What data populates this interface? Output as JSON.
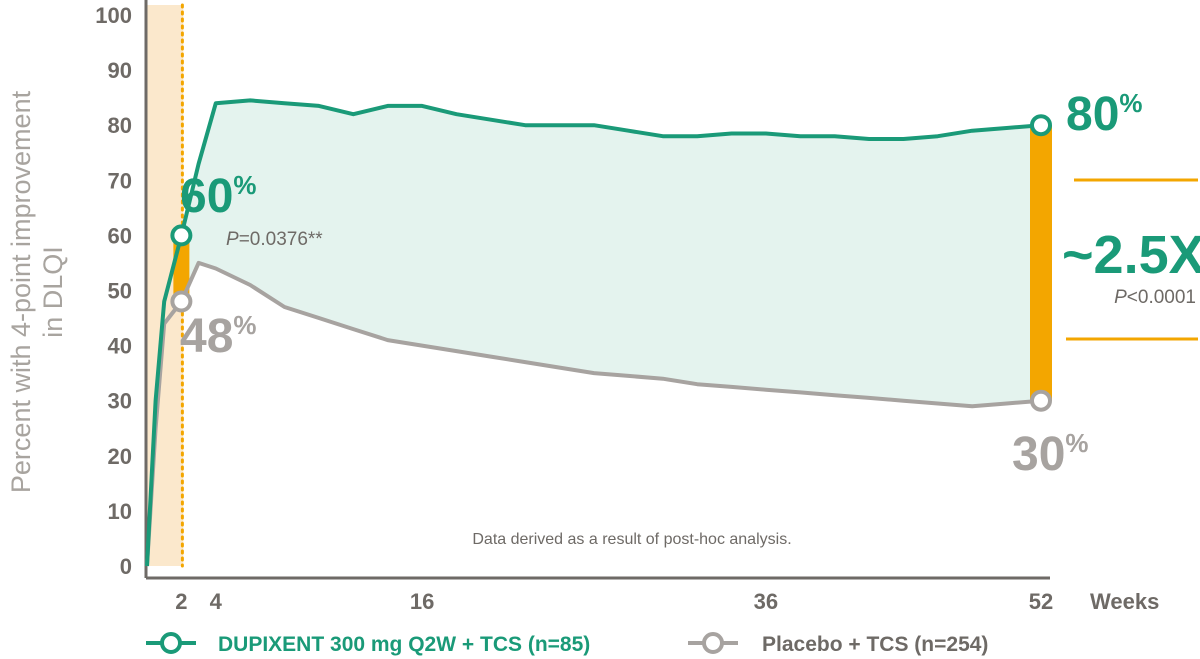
{
  "chart_data": {
    "type": "line",
    "ylabel_line1": "Percent with 4-point improvement",
    "ylabel_line2": "in DLQI",
    "xlabel": "Weeks",
    "ylim": [
      0,
      100
    ],
    "yticks": [
      "0",
      "10",
      "20",
      "30",
      "40",
      "50",
      "60",
      "70",
      "80",
      "90",
      "100"
    ],
    "xticks": [
      {
        "label": "2",
        "x": 2
      },
      {
        "label": "4",
        "x": 4
      },
      {
        "label": "16",
        "x": 16
      },
      {
        "label": "36",
        "x": 36
      },
      {
        "label": "52",
        "x": 52
      }
    ],
    "series": [
      {
        "name": "DUPIXENT 300 mg Q2W + TCS (n=85)",
        "color": "#1a9a78",
        "points": [
          [
            0,
            0
          ],
          [
            0.5,
            30
          ],
          [
            1,
            48
          ],
          [
            2,
            60
          ],
          [
            3,
            73
          ],
          [
            4,
            84
          ],
          [
            6,
            84.5
          ],
          [
            8,
            84
          ],
          [
            10,
            83.5
          ],
          [
            12,
            82
          ],
          [
            14,
            83.5
          ],
          [
            16,
            83.5
          ],
          [
            18,
            82
          ],
          [
            20,
            81
          ],
          [
            22,
            80
          ],
          [
            24,
            80
          ],
          [
            26,
            80
          ],
          [
            28,
            79
          ],
          [
            30,
            78
          ],
          [
            32,
            78
          ],
          [
            34,
            78.5
          ],
          [
            36,
            78.5
          ],
          [
            38,
            78
          ],
          [
            40,
            78
          ],
          [
            42,
            77.5
          ],
          [
            44,
            77.5
          ],
          [
            46,
            78
          ],
          [
            48,
            79
          ],
          [
            50,
            79.5
          ],
          [
            52,
            80
          ]
        ]
      },
      {
        "name": "Placebo + TCS (n=254)",
        "color": "#a7a3a0",
        "points": [
          [
            0,
            0
          ],
          [
            0.5,
            25
          ],
          [
            1,
            44
          ],
          [
            2,
            48
          ],
          [
            3,
            55
          ],
          [
            4,
            54
          ],
          [
            6,
            51
          ],
          [
            8,
            47
          ],
          [
            10,
            45
          ],
          [
            12,
            43
          ],
          [
            14,
            41
          ],
          [
            16,
            40
          ],
          [
            18,
            39
          ],
          [
            20,
            38
          ],
          [
            22,
            37
          ],
          [
            24,
            36
          ],
          [
            26,
            35
          ],
          [
            28,
            34.5
          ],
          [
            30,
            34
          ],
          [
            32,
            33
          ],
          [
            34,
            32.5
          ],
          [
            36,
            32
          ],
          [
            38,
            31.5
          ],
          [
            40,
            31
          ],
          [
            42,
            30.5
          ],
          [
            44,
            30
          ],
          [
            46,
            29.5
          ],
          [
            48,
            29
          ],
          [
            50,
            29.5
          ],
          [
            52,
            30
          ]
        ]
      }
    ],
    "annotations": {
      "week2_dupixent": {
        "value": "60",
        "unit": "%"
      },
      "week2_placebo": {
        "value": "48",
        "unit": "%"
      },
      "week2_p_italic": "P",
      "week2_p_rest": "=0.0376**",
      "week52_dupixent": {
        "value": "80",
        "unit": "%"
      },
      "week52_placebo": {
        "value": "30",
        "unit": "%"
      },
      "fold": "~2.5X",
      "week52_p_italic": "P",
      "week52_p_rest": "<0.0001",
      "note": "Data derived as a result of post-hoc analysis."
    },
    "colors": {
      "dupixent": "#1a9a78",
      "placebo": "#a7a3a0",
      "fill": "#e4f3ee",
      "highlight": "#f3a600",
      "band": "#fbe8cc",
      "axis": "#6e6a66"
    },
    "legend": {
      "placement": "bottom",
      "dupixent_label": "DUPIXENT 300 mg Q2W + TCS (n=85)",
      "placebo_label": "Placebo + TCS (n=254)"
    }
  }
}
